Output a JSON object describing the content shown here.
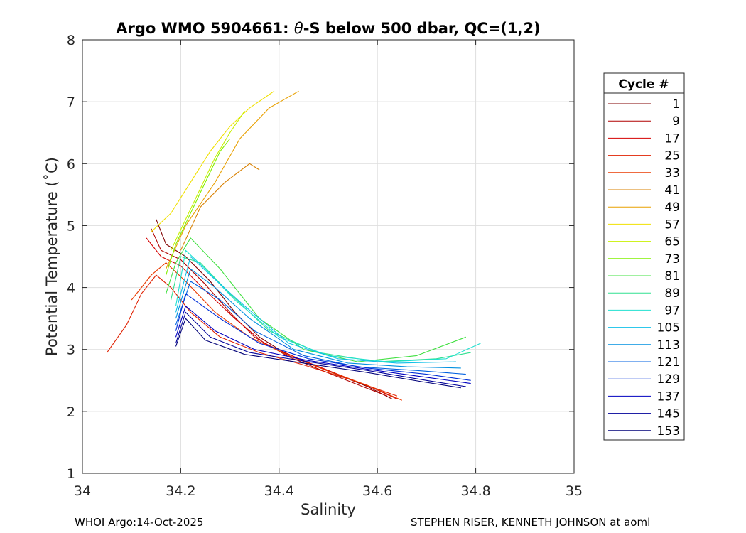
{
  "chart_data": {
    "type": "line",
    "title": "Argo WMO 5904661: θ-S below 500 dbar,  QC=(1,2)",
    "title_prefix": "Argo WMO 5904661: ",
    "title_theta": "θ",
    "title_suffix": "-S below 500 dbar,  QC=(1,2)",
    "xlabel": "Salinity",
    "ylabel": "Potential Temperature (˚C)",
    "xlim": [
      34,
      35
    ],
    "ylim": [
      1,
      8
    ],
    "xticks": [
      34,
      34.2,
      34.4,
      34.6,
      34.8,
      35
    ],
    "xtick_labels": [
      "34",
      "34.2",
      "34.4",
      "34.6",
      "34.8",
      "35"
    ],
    "yticks": [
      1,
      2,
      3,
      4,
      5,
      6,
      7,
      8
    ],
    "ytick_labels": [
      "1",
      "2",
      "3",
      "4",
      "5",
      "6",
      "7",
      "8"
    ],
    "grid": true,
    "legend_position": "right",
    "legend_title": "Cycle #",
    "series": [
      {
        "name": "1",
        "color": "#800000",
        "points": [
          [
            34.15,
            5.1
          ],
          [
            34.17,
            4.7
          ],
          [
            34.21,
            4.5
          ],
          [
            34.26,
            4.1
          ],
          [
            34.31,
            3.6
          ],
          [
            34.36,
            3.2
          ],
          [
            34.42,
            2.9
          ],
          [
            34.5,
            2.65
          ],
          [
            34.58,
            2.4
          ],
          [
            34.63,
            2.2
          ]
        ]
      },
      {
        "name": "9",
        "color": "#b00000",
        "points": [
          [
            34.14,
            4.95
          ],
          [
            34.16,
            4.6
          ],
          [
            34.2,
            4.45
          ],
          [
            34.25,
            4.05
          ],
          [
            34.3,
            3.6
          ],
          [
            34.35,
            3.2
          ],
          [
            34.42,
            2.88
          ],
          [
            34.5,
            2.62
          ],
          [
            34.57,
            2.4
          ],
          [
            34.62,
            2.25
          ]
        ]
      },
      {
        "name": "17",
        "color": "#d40000",
        "points": [
          [
            34.13,
            4.8
          ],
          [
            34.16,
            4.5
          ],
          [
            34.2,
            4.35
          ],
          [
            34.25,
            3.95
          ],
          [
            34.31,
            3.5
          ],
          [
            34.37,
            3.1
          ],
          [
            34.44,
            2.85
          ],
          [
            34.52,
            2.6
          ],
          [
            34.59,
            2.38
          ],
          [
            34.64,
            2.2
          ]
        ]
      },
      {
        "name": "25",
        "color": "#e02000",
        "points": [
          [
            34.05,
            2.95
          ],
          [
            34.09,
            3.4
          ],
          [
            34.12,
            3.9
          ],
          [
            34.15,
            4.2
          ],
          [
            34.18,
            4.0
          ],
          [
            34.22,
            3.6
          ],
          [
            34.28,
            3.2
          ],
          [
            34.36,
            2.95
          ],
          [
            34.45,
            2.75
          ],
          [
            34.55,
            2.5
          ],
          [
            34.64,
            2.25
          ]
        ]
      },
      {
        "name": "33",
        "color": "#ea3a00",
        "points": [
          [
            34.1,
            3.8
          ],
          [
            34.14,
            4.2
          ],
          [
            34.17,
            4.4
          ],
          [
            34.21,
            4.1
          ],
          [
            34.27,
            3.6
          ],
          [
            34.34,
            3.2
          ],
          [
            34.42,
            2.9
          ],
          [
            34.5,
            2.65
          ],
          [
            34.58,
            2.42
          ],
          [
            34.65,
            2.18
          ]
        ]
      },
      {
        "name": "41",
        "color": "#d88000",
        "points": [
          [
            34.2,
            4.6
          ],
          [
            34.24,
            5.3
          ],
          [
            34.29,
            5.7
          ],
          [
            34.34,
            6.0
          ],
          [
            34.36,
            5.9
          ]
        ]
      },
      {
        "name": "49",
        "color": "#e8a000",
        "points": [
          [
            34.17,
            4.3
          ],
          [
            34.21,
            5.0
          ],
          [
            34.27,
            5.7
          ],
          [
            34.32,
            6.4
          ],
          [
            34.38,
            6.9
          ],
          [
            34.44,
            7.17
          ]
        ]
      },
      {
        "name": "57",
        "color": "#f0e000",
        "points": [
          [
            34.14,
            4.9
          ],
          [
            34.18,
            5.2
          ],
          [
            34.22,
            5.7
          ],
          [
            34.26,
            6.2
          ],
          [
            34.3,
            6.6
          ],
          [
            34.34,
            6.9
          ],
          [
            34.39,
            7.17
          ]
        ]
      },
      {
        "name": "65",
        "color": "#c8f000",
        "points": [
          [
            34.18,
            4.6
          ],
          [
            34.21,
            5.1
          ],
          [
            34.24,
            5.6
          ],
          [
            34.27,
            6.1
          ],
          [
            34.3,
            6.5
          ],
          [
            34.33,
            6.85
          ]
        ]
      },
      {
        "name": "73",
        "color": "#80f000",
        "points": [
          [
            34.17,
            4.2
          ],
          [
            34.19,
            4.7
          ],
          [
            34.22,
            5.2
          ],
          [
            34.25,
            5.7
          ],
          [
            34.28,
            6.2
          ],
          [
            34.3,
            6.4
          ]
        ]
      },
      {
        "name": "81",
        "color": "#40e040",
        "points": [
          [
            34.17,
            3.9
          ],
          [
            34.19,
            4.4
          ],
          [
            34.22,
            4.8
          ],
          [
            34.28,
            4.3
          ],
          [
            34.36,
            3.5
          ],
          [
            34.45,
            3.0
          ],
          [
            34.56,
            2.8
          ],
          [
            34.68,
            2.9
          ],
          [
            34.78,
            3.2
          ]
        ]
      },
      {
        "name": "89",
        "color": "#30e090",
        "points": [
          [
            34.18,
            3.8
          ],
          [
            34.2,
            4.5
          ],
          [
            34.24,
            4.4
          ],
          [
            34.3,
            3.9
          ],
          [
            34.38,
            3.3
          ],
          [
            34.48,
            2.95
          ],
          [
            34.6,
            2.8
          ],
          [
            34.72,
            2.85
          ],
          [
            34.79,
            2.95
          ]
        ]
      },
      {
        "name": "97",
        "color": "#20e0d0",
        "points": [
          [
            34.19,
            3.7
          ],
          [
            34.21,
            4.6
          ],
          [
            34.25,
            4.3
          ],
          [
            34.31,
            3.8
          ],
          [
            34.4,
            3.2
          ],
          [
            34.5,
            2.9
          ],
          [
            34.62,
            2.8
          ],
          [
            34.74,
            2.85
          ],
          [
            34.81,
            3.1
          ]
        ]
      },
      {
        "name": "105",
        "color": "#10c0e8",
        "points": [
          [
            34.19,
            3.6
          ],
          [
            34.22,
            4.5
          ],
          [
            34.26,
            4.2
          ],
          [
            34.33,
            3.7
          ],
          [
            34.42,
            3.1
          ],
          [
            34.52,
            2.85
          ],
          [
            34.64,
            2.78
          ],
          [
            34.76,
            2.8
          ]
        ]
      },
      {
        "name": "113",
        "color": "#0090e0",
        "points": [
          [
            34.19,
            3.5
          ],
          [
            34.22,
            4.3
          ],
          [
            34.27,
            4.0
          ],
          [
            34.34,
            3.5
          ],
          [
            34.43,
            3.0
          ],
          [
            34.54,
            2.78
          ],
          [
            34.66,
            2.72
          ],
          [
            34.77,
            2.7
          ]
        ]
      },
      {
        "name": "121",
        "color": "#0060e0",
        "points": [
          [
            34.19,
            3.4
          ],
          [
            34.22,
            4.1
          ],
          [
            34.28,
            3.8
          ],
          [
            34.35,
            3.3
          ],
          [
            34.45,
            2.9
          ],
          [
            34.56,
            2.72
          ],
          [
            34.68,
            2.66
          ],
          [
            34.78,
            2.6
          ]
        ]
      },
      {
        "name": "129",
        "color": "#0030d8",
        "points": [
          [
            34.19,
            3.3
          ],
          [
            34.21,
            3.9
          ],
          [
            34.28,
            3.5
          ],
          [
            34.36,
            3.1
          ],
          [
            34.46,
            2.85
          ],
          [
            34.58,
            2.7
          ],
          [
            34.7,
            2.6
          ],
          [
            34.79,
            2.5
          ]
        ]
      },
      {
        "name": "137",
        "color": "#0000c0",
        "points": [
          [
            34.19,
            3.2
          ],
          [
            34.21,
            3.7
          ],
          [
            34.27,
            3.3
          ],
          [
            34.35,
            3.0
          ],
          [
            34.46,
            2.82
          ],
          [
            34.58,
            2.68
          ],
          [
            34.7,
            2.55
          ],
          [
            34.79,
            2.45
          ]
        ]
      },
      {
        "name": "145",
        "color": "#00009a",
        "points": [
          [
            34.19,
            3.1
          ],
          [
            34.21,
            3.6
          ],
          [
            34.26,
            3.2
          ],
          [
            34.34,
            2.95
          ],
          [
            34.46,
            2.8
          ],
          [
            34.58,
            2.66
          ],
          [
            34.7,
            2.5
          ],
          [
            34.78,
            2.4
          ]
        ]
      },
      {
        "name": "153",
        "color": "#000078",
        "points": [
          [
            34.19,
            3.05
          ],
          [
            34.21,
            3.5
          ],
          [
            34.25,
            3.15
          ],
          [
            34.33,
            2.92
          ],
          [
            34.45,
            2.78
          ],
          [
            34.57,
            2.64
          ],
          [
            34.69,
            2.48
          ],
          [
            34.77,
            2.38
          ]
        ]
      }
    ]
  },
  "footer": {
    "left": "WHOI Argo:14-Oct-2025",
    "right": "STEPHEN RISER, KENNETH JOHNSON at aoml"
  }
}
